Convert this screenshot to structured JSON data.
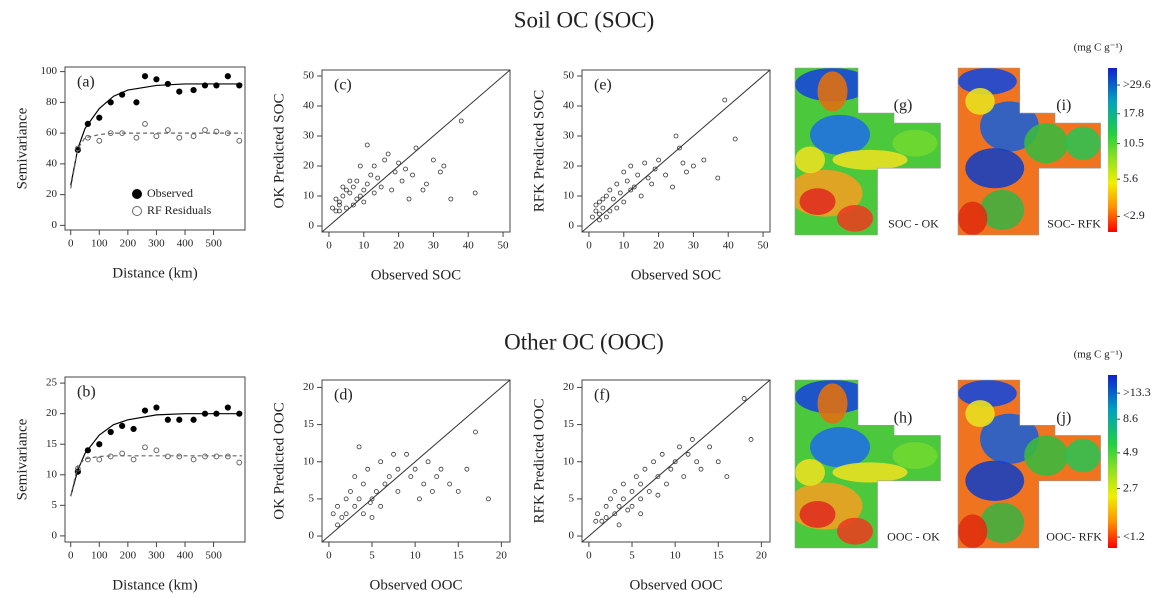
{
  "row_titles": [
    "Soil OC (SOC)",
    "Other OC (OOC)"
  ],
  "chart_data": [
    {
      "type": "semivariogram",
      "panel_label": "(a)",
      "xlabel": "Distance (km)",
      "ylabel": "Semivariance",
      "xlim": [
        -20,
        610
      ],
      "xticks": [
        0,
        100,
        200,
        300,
        400,
        500
      ],
      "ylim": [
        -3,
        103
      ],
      "yticks": [
        0,
        20,
        40,
        60,
        80,
        100
      ],
      "legend": "bottom",
      "series": [
        {
          "name": "Observed",
          "marker": "filled",
          "color": "#000000",
          "line_style": "solid",
          "x": [
            25,
            60,
            100,
            140,
            180,
            230,
            260,
            300,
            340,
            380,
            430,
            470,
            510,
            550,
            590
          ],
          "values": [
            49,
            66,
            70,
            80,
            85,
            80,
            97,
            95,
            92,
            87,
            88,
            91,
            91,
            97,
            91
          ],
          "fit": {
            "x": [
              0,
              25,
              50,
              100,
              150,
              200,
              300,
              400,
              500,
              600
            ],
            "values": [
              26,
              50,
              63,
              76,
              84,
              88,
              91,
              92,
              92,
              92
            ]
          }
        },
        {
          "name": "RF Residuals",
          "marker": "open",
          "color": "#666666",
          "line_style": "dashed",
          "x": [
            25,
            60,
            100,
            140,
            180,
            230,
            260,
            300,
            340,
            380,
            430,
            470,
            510,
            550,
            590
          ],
          "values": [
            50,
            57,
            55,
            60,
            60,
            57,
            66,
            58,
            62,
            57,
            58,
            62,
            61,
            60,
            55
          ],
          "fit": {
            "x": [
              0,
              25,
              50,
              100,
              150,
              200,
              300,
              400,
              500,
              600
            ],
            "values": [
              24,
              50,
              57,
              59,
              60,
              60,
              60,
              60,
              60,
              60
            ]
          }
        }
      ]
    },
    {
      "type": "scatter",
      "panel_label": "(c)",
      "xlabel": "Observed SOC",
      "ylabel": "OK Predicted SOC",
      "one_to_one": true,
      "xlim": [
        -2,
        52
      ],
      "xticks": [
        0,
        10,
        20,
        30,
        40,
        50
      ],
      "ylim": [
        -2,
        52
      ],
      "yticks": [
        0,
        10,
        20,
        30,
        40,
        50
      ],
      "x": [
        1,
        2,
        2,
        3,
        3,
        4,
        5,
        5,
        6,
        7,
        8,
        8,
        9,
        10,
        10,
        11,
        12,
        13,
        13,
        14,
        15,
        16,
        17,
        18,
        19,
        20,
        21,
        22,
        23,
        24,
        25,
        27,
        28,
        30,
        32,
        33,
        35,
        38,
        42,
        11,
        6,
        4,
        3,
        7,
        9
      ],
      "values": [
        6,
        5,
        9,
        7,
        8,
        10,
        6,
        12,
        11,
        13,
        9,
        15,
        10,
        12,
        8,
        14,
        17,
        11,
        20,
        16,
        13,
        22,
        24,
        12,
        18,
        21,
        15,
        19,
        9,
        17,
        26,
        12,
        14,
        22,
        18,
        20,
        9,
        35,
        11,
        27,
        15,
        13,
        5,
        7,
        20
      ]
    },
    {
      "type": "scatter",
      "panel_label": "(e)",
      "xlabel": "Observed SOC",
      "ylabel": "RFK Predicted SOC",
      "one_to_one": true,
      "xlim": [
        -2,
        52
      ],
      "xticks": [
        0,
        10,
        20,
        30,
        40,
        50
      ],
      "ylim": [
        -2,
        52
      ],
      "yticks": [
        0,
        10,
        20,
        30,
        40,
        50
      ],
      "x": [
        1,
        2,
        2,
        3,
        3,
        4,
        5,
        5,
        6,
        7,
        8,
        8,
        9,
        10,
        10,
        11,
        12,
        13,
        14,
        15,
        16,
        17,
        18,
        19,
        20,
        22,
        24,
        25,
        26,
        27,
        28,
        30,
        33,
        37,
        39,
        42,
        6,
        4,
        3,
        12
      ],
      "values": [
        3,
        5,
        7,
        4,
        8,
        6,
        10,
        3,
        12,
        9,
        14,
        6,
        11,
        18,
        8,
        15,
        20,
        13,
        17,
        10,
        21,
        16,
        14,
        19,
        22,
        17,
        13,
        30,
        26,
        21,
        18,
        20,
        22,
        16,
        42,
        29,
        5,
        9,
        2,
        12
      ]
    },
    {
      "type": "map",
      "panel_label": "(g)",
      "caption": "SOC - OK",
      "style": "ok"
    },
    {
      "type": "map",
      "panel_label": "(i)",
      "caption": "SOC- RFK",
      "style": "rfk"
    },
    {
      "type": "colorbar",
      "unit": "(mg C g⁻¹)",
      "log": true,
      "ylim": [
        2.2,
        40
      ],
      "yticks": [
        {
          "value": 29.6,
          "label": ">29.6"
        },
        17.8,
        10.5,
        5.6,
        {
          "value": 2.9,
          "label": "<2.9"
        }
      ]
    },
    {
      "type": "semivariogram",
      "panel_label": "(b)",
      "xlabel": "Distance (km)",
      "ylabel": "Semivariance",
      "xlim": [
        -20,
        610
      ],
      "xticks": [
        0,
        100,
        200,
        300,
        400,
        500
      ],
      "ylim": [
        -1,
        26
      ],
      "yticks": [
        0,
        5,
        10,
        15,
        20,
        25
      ],
      "series": [
        {
          "marker": "filled",
          "color": "#000000",
          "line_style": "solid",
          "x": [
            25,
            60,
            100,
            140,
            180,
            220,
            260,
            300,
            340,
            380,
            430,
            470,
            510,
            550,
            590
          ],
          "values": [
            10.5,
            14,
            15,
            17,
            18,
            17.5,
            20.5,
            21,
            19,
            19,
            19,
            20,
            20,
            21,
            20
          ],
          "fit": {
            "x": [
              0,
              25,
              50,
              100,
              150,
              200,
              300,
              400,
              500,
              600
            ],
            "values": [
              6.5,
              10.8,
              13.5,
              16.5,
              18.2,
              19,
              19.8,
              20,
              20,
              20
            ]
          }
        },
        {
          "marker": "open",
          "color": "#666666",
          "line_style": "dashed",
          "x": [
            25,
            60,
            100,
            140,
            180,
            220,
            260,
            300,
            340,
            380,
            430,
            470,
            510,
            550,
            590
          ],
          "values": [
            11,
            12.5,
            12.5,
            13,
            13.5,
            12.5,
            14.5,
            14,
            13,
            13,
            12.5,
            13,
            13,
            13,
            12
          ],
          "fit": {
            "x": [
              0,
              25,
              50,
              100,
              150,
              200,
              300,
              400,
              500,
              600
            ],
            "values": [
              6.5,
              11.5,
              12.6,
              13,
              13.1,
              13.1,
              13.1,
              13.1,
              13.1,
              13.1
            ]
          }
        }
      ]
    },
    {
      "type": "scatter",
      "panel_label": "(d)",
      "xlabel": "Observed OOC",
      "ylabel": "OK Predicted OOC",
      "one_to_one": true,
      "xlim": [
        -0.8,
        21
      ],
      "xticks": [
        0,
        5,
        10,
        15,
        20
      ],
      "ylim": [
        -0.8,
        21
      ],
      "yticks": [
        0,
        5,
        10,
        15,
        20
      ],
      "x": [
        0.5,
        1,
        1.5,
        2,
        2,
        2.5,
        3,
        3,
        3.5,
        4,
        4,
        4.5,
        5,
        5,
        5.5,
        6,
        6,
        6.5,
        7,
        7.5,
        8,
        8,
        9,
        9.5,
        10,
        10.5,
        11,
        11.5,
        12,
        12.5,
        13,
        14,
        15,
        16,
        17,
        18.5,
        3.5,
        4.8,
        1
      ],
      "values": [
        3,
        4,
        2.5,
        5,
        3,
        6,
        4,
        8,
        5,
        7,
        3,
        9,
        5,
        2.5,
        6,
        10,
        4,
        7,
        8,
        11,
        6,
        9,
        11,
        8,
        9,
        5,
        7,
        10,
        6,
        8,
        9,
        7,
        6,
        9,
        14,
        5,
        12,
        4.5,
        1.5
      ]
    },
    {
      "type": "scatter",
      "panel_label": "(f)",
      "xlabel": "Observed OOC",
      "ylabel": "RFK Predicted OOC",
      "one_to_one": true,
      "xlim": [
        -0.8,
        21
      ],
      "xticks": [
        0,
        5,
        10,
        15,
        20
      ],
      "ylim": [
        -0.8,
        21
      ],
      "yticks": [
        0,
        5,
        10,
        15,
        20
      ],
      "x": [
        0.8,
        1,
        1.5,
        2,
        2,
        2.5,
        3,
        3,
        3.5,
        4,
        4,
        4.5,
        5,
        5,
        5.5,
        6,
        6,
        6.5,
        7,
        7.5,
        8,
        8.5,
        9,
        9.5,
        10,
        10.5,
        11,
        11.5,
        12,
        12.5,
        13,
        14,
        15,
        16,
        18,
        18.8,
        3.5,
        6,
        8
      ],
      "values": [
        2,
        3,
        2,
        4,
        2.5,
        5,
        3,
        6,
        4,
        5,
        7,
        3.5,
        6,
        4,
        8,
        7,
        5,
        9,
        6,
        10,
        8,
        11,
        7,
        9,
        10,
        12,
        8,
        11,
        13,
        10,
        9,
        12,
        10,
        8,
        18.5,
        13,
        1.5,
        3,
        5.5
      ]
    },
    {
      "type": "map",
      "panel_label": "(h)",
      "caption": "OOC - OK",
      "style": "ok"
    },
    {
      "type": "map",
      "panel_label": "(j)",
      "caption": "OOC- RFK",
      "style": "rfk"
    },
    {
      "type": "colorbar",
      "unit": "(mg C g⁻¹)",
      "log": true,
      "ylim": [
        1.0,
        18
      ],
      "yticks": [
        {
          "value": 13.3,
          "label": ">13.3"
        },
        8.6,
        4.9,
        2.7,
        {
          "value": 1.2,
          "label": "<1.2"
        }
      ]
    }
  ]
}
